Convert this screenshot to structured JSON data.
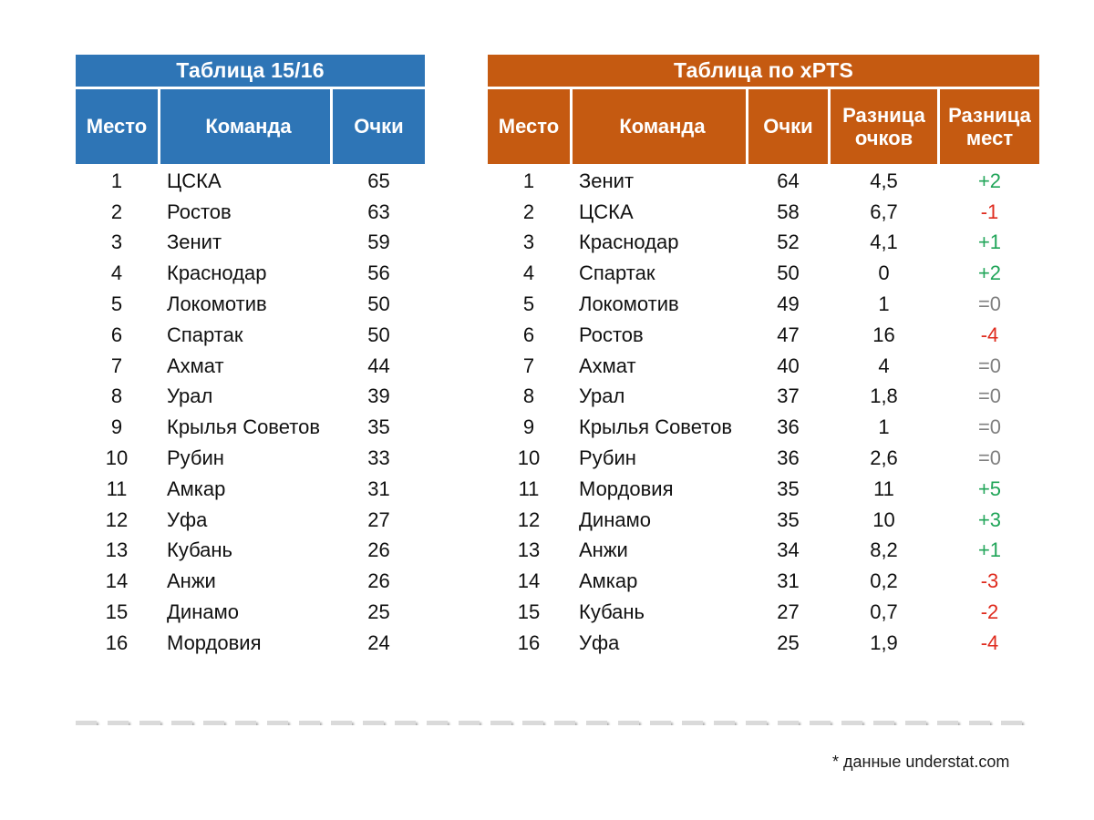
{
  "chart_data": [
    {
      "type": "table",
      "title": "Таблица 15/16",
      "columns": [
        "Место",
        "Команда",
        "Очки"
      ],
      "rows": [
        [
          "1",
          "ЦСКА",
          "65"
        ],
        [
          "2",
          "Ростов",
          "63"
        ],
        [
          "3",
          "Зенит",
          "59"
        ],
        [
          "4",
          "Краснодар",
          "56"
        ],
        [
          "5",
          "Локомотив",
          "50"
        ],
        [
          "6",
          "Спартак",
          "50"
        ],
        [
          "7",
          "Ахмат",
          "44"
        ],
        [
          "8",
          "Урал",
          "39"
        ],
        [
          "9",
          "Крылья Советов",
          "35"
        ],
        [
          "10",
          "Рубин",
          "33"
        ],
        [
          "11",
          "Амкар",
          "31"
        ],
        [
          "12",
          "Уфа",
          "27"
        ],
        [
          "13",
          "Кубань",
          "26"
        ],
        [
          "14",
          "Анжи",
          "26"
        ],
        [
          "15",
          "Динамо",
          "25"
        ],
        [
          "16",
          "Мордовия",
          "24"
        ]
      ]
    },
    {
      "type": "table",
      "title": "Таблица по xPTS",
      "columns": [
        "Место",
        "Команда",
        "Очки",
        "Разница очков",
        "Разница мест"
      ],
      "rows": [
        [
          "1",
          "Зенит",
          "64",
          "4,5",
          "+2"
        ],
        [
          "2",
          "ЦСКА",
          "58",
          "6,7",
          "-1"
        ],
        [
          "3",
          "Краснодар",
          "52",
          "4,1",
          "+1"
        ],
        [
          "4",
          "Спартак",
          "50",
          "0",
          "+2"
        ],
        [
          "5",
          "Локомотив",
          "49",
          "1",
          "=0"
        ],
        [
          "6",
          "Ростов",
          "47",
          "16",
          "-4"
        ],
        [
          "7",
          "Ахмат",
          "40",
          "4",
          "=0"
        ],
        [
          "8",
          "Урал",
          "37",
          "1,8",
          "=0"
        ],
        [
          "9",
          "Крылья Советов",
          "36",
          "1",
          "=0"
        ],
        [
          "10",
          "Рубин",
          "36",
          "2,6",
          "=0"
        ],
        [
          "11",
          "Мордовия",
          "35",
          "11",
          "+5"
        ],
        [
          "12",
          "Динамо",
          "35",
          "10",
          "+3"
        ],
        [
          "13",
          "Анжи",
          "34",
          "8,2",
          "+1"
        ],
        [
          "14",
          "Амкар",
          "31",
          "0,2",
          "-3"
        ],
        [
          "15",
          "Кубань",
          "27",
          "0,7",
          "-2"
        ],
        [
          "16",
          "Уфа",
          "25",
          "1,9",
          "-4"
        ]
      ]
    }
  ],
  "footer": {
    "note": "* данные understat.com"
  },
  "colors": {
    "header_blue": "#2E75B6",
    "header_orange": "#C55A11",
    "positive": "#21A559",
    "negative": "#DF2B1E",
    "neutral": "#7F7F7F"
  }
}
